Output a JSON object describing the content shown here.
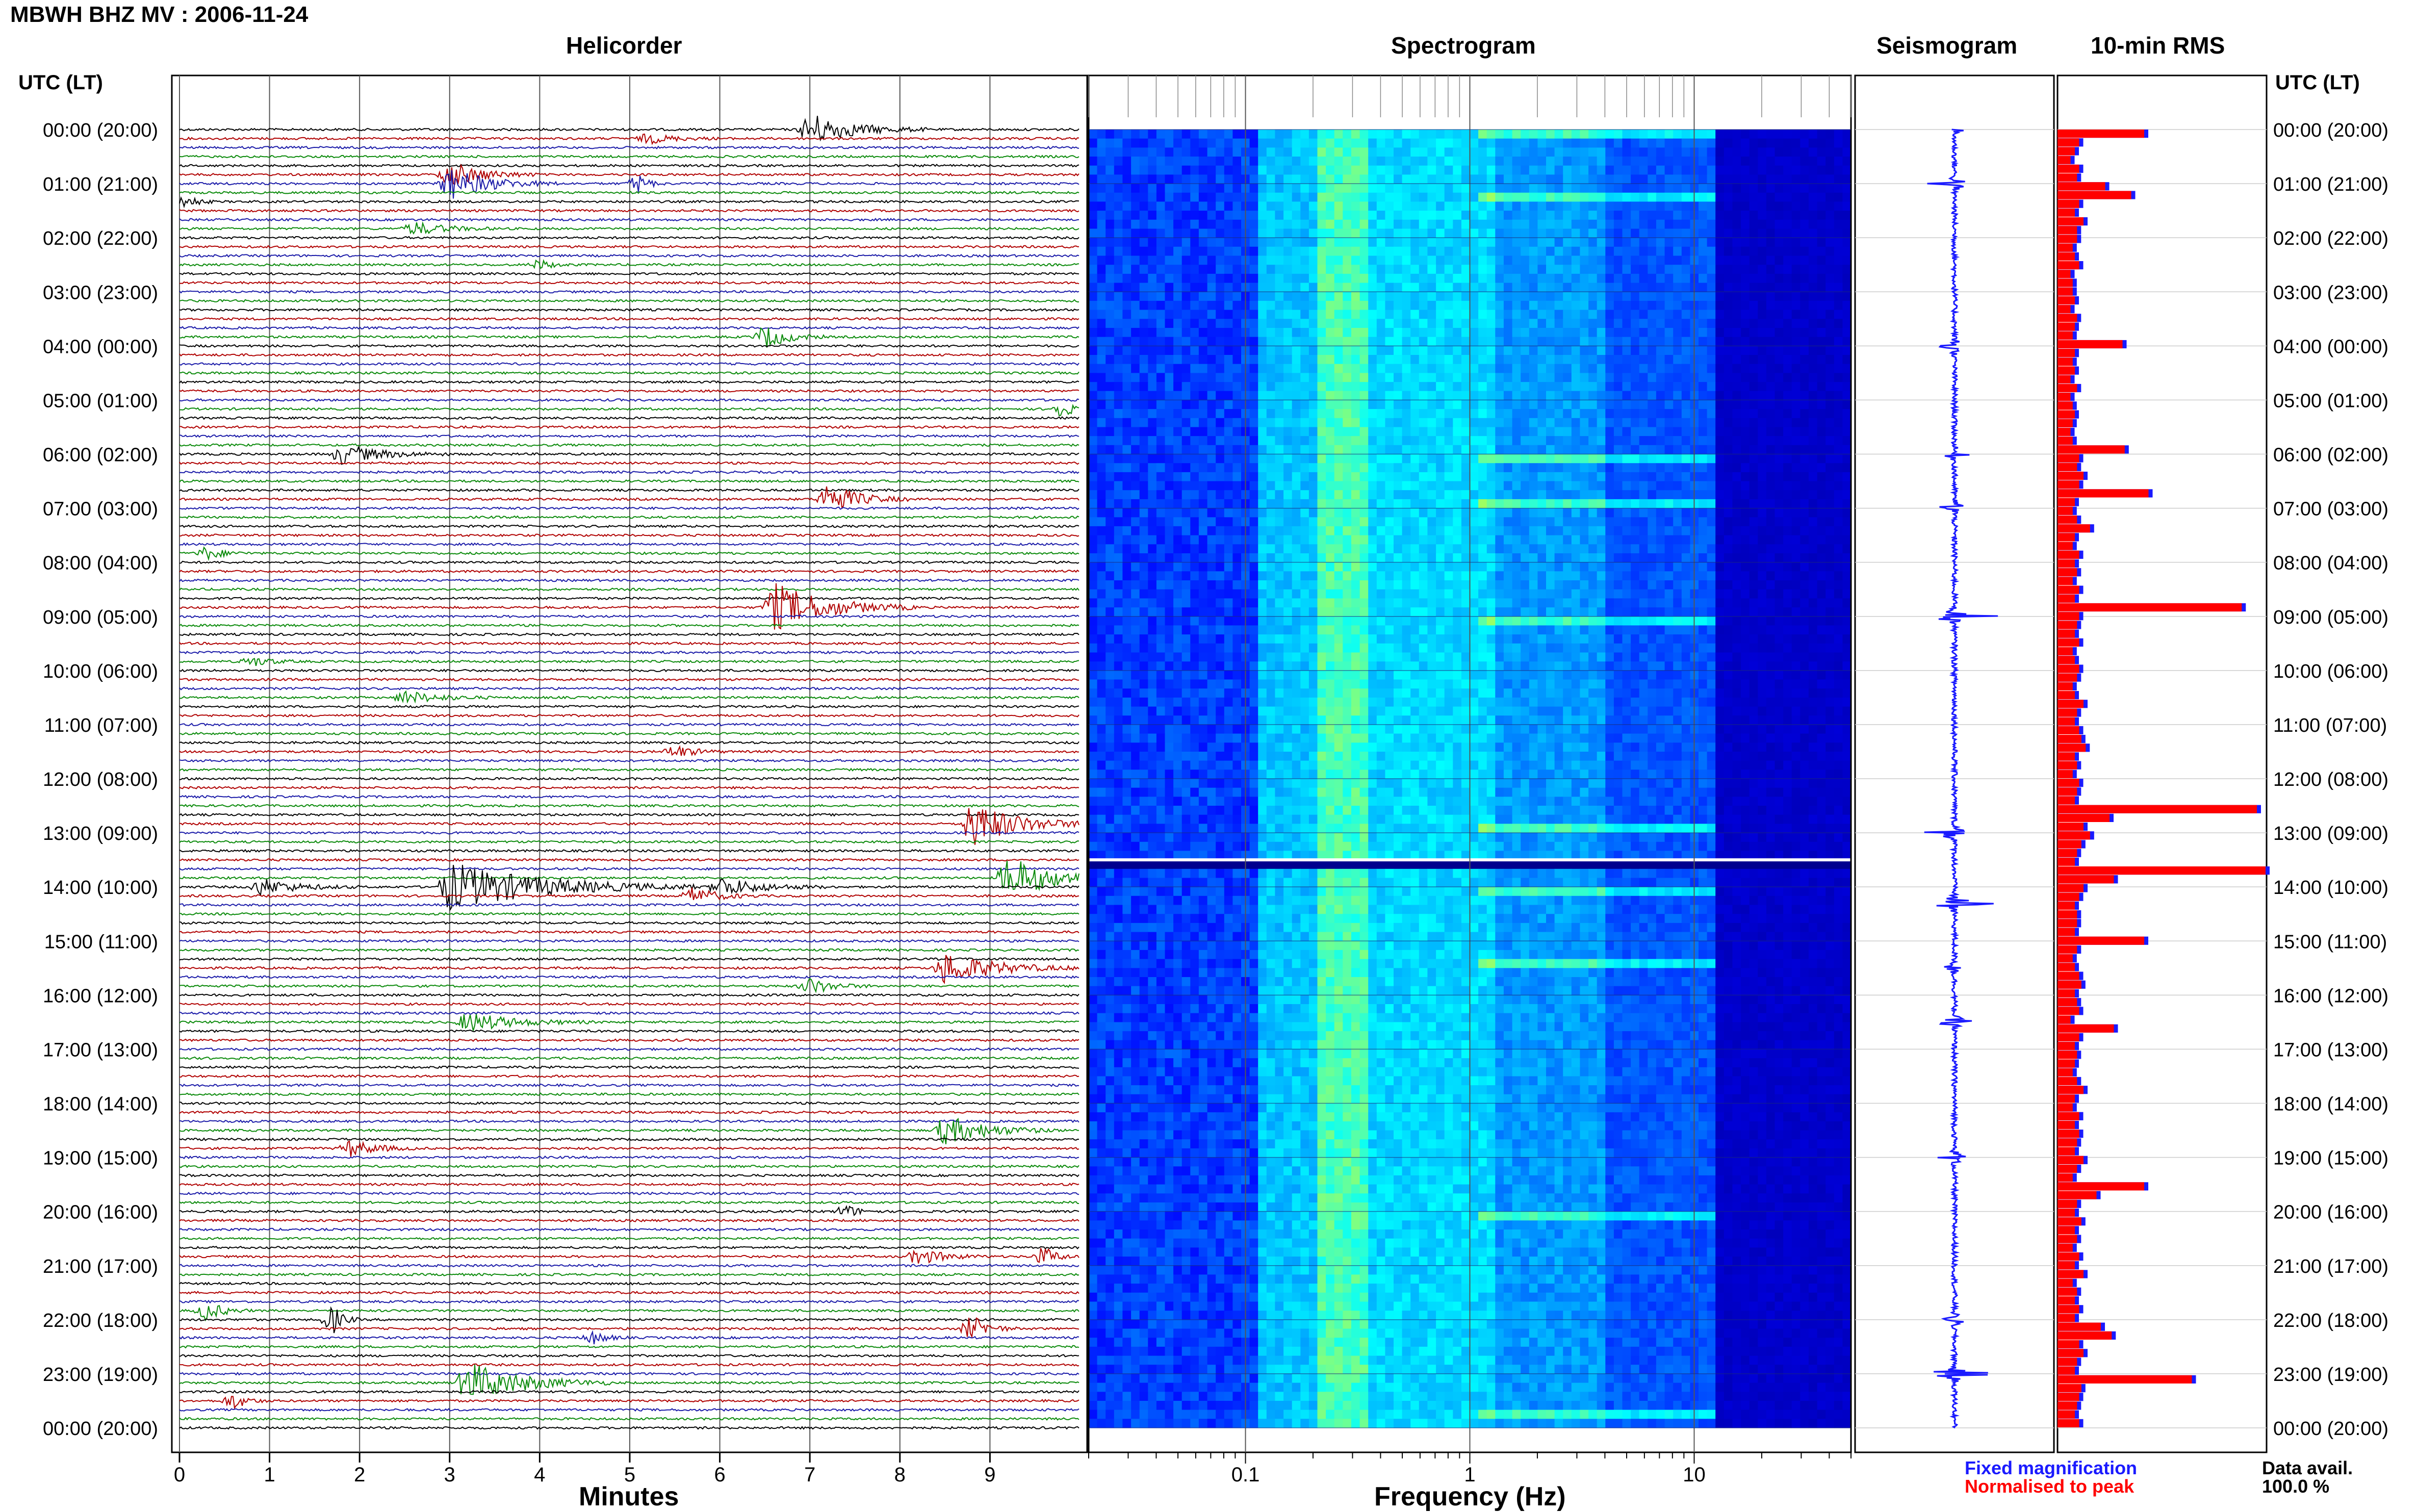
{
  "header": {
    "title": "MBWH BHZ MV : 2006-11-24",
    "helicorder_title": "Helicorder",
    "spectrogram_title": "Spectrogram",
    "seismogram_title": "Seismogram",
    "rms_title": "10-min RMS",
    "left_axis_title": "UTC (LT)",
    "right_axis_title": "UTC (LT)"
  },
  "chart_data": [
    {
      "type": "helicorder",
      "xlabel": "Minutes",
      "x_ticks": [
        "0",
        "1",
        "2",
        "3",
        "4",
        "5",
        "6",
        "7",
        "8",
        "9"
      ],
      "xlim": [
        0,
        10
      ],
      "row_labels": [
        "00:00 (20:00)",
        "01:00 (21:00)",
        "02:00 (22:00)",
        "03:00 (23:00)",
        "04:00 (00:00)",
        "05:00 (01:00)",
        "06:00 (02:00)",
        "07:00 (03:00)",
        "08:00 (04:00)",
        "09:00 (05:00)",
        "10:00 (06:00)",
        "11:00 (07:00)",
        "12:00 (08:00)",
        "13:00 (09:00)",
        "14:00 (10:00)",
        "15:00 (11:00)",
        "16:00 (12:00)",
        "17:00 (13:00)",
        "18:00 (14:00)",
        "19:00 (15:00)",
        "20:00 (16:00)",
        "21:00 (17:00)",
        "22:00 (18:00)",
        "23:00 (19:00)",
        "00:00 (20:00)"
      ],
      "trace_colors": [
        "#000000",
        "#b00000",
        "#1a1aa8",
        "#0a8a0a"
      ],
      "traces_per_hour": 6,
      "events": [
        {
          "hour": 0.0,
          "minute": 7.0,
          "amp": 1.0,
          "width": 1.3
        },
        {
          "hour": 0.17,
          "minute": 5.2,
          "amp": 0.3,
          "width": 0.8
        },
        {
          "hour": 0.83,
          "minute": 3.0,
          "amp": 0.8,
          "width": 1.0
        },
        {
          "hour": 1.0,
          "minute": 3.0,
          "amp": 1.0,
          "width": 1.2
        },
        {
          "hour": 1.0,
          "minute": 5.1,
          "amp": 0.6,
          "width": 0.3
        },
        {
          "hour": 1.33,
          "minute": 0.1,
          "amp": 0.4,
          "width": 0.3
        },
        {
          "hour": 1.83,
          "minute": 2.6,
          "amp": 0.4,
          "width": 1.0
        },
        {
          "hour": 2.5,
          "minute": 4.0,
          "amp": 0.3,
          "width": 0.4
        },
        {
          "hour": 3.83,
          "minute": 6.5,
          "amp": 0.7,
          "width": 0.7
        },
        {
          "hour": 5.17,
          "minute": 9.8,
          "amp": 0.6,
          "width": 0.3
        },
        {
          "hour": 6.0,
          "minute": 1.8,
          "amp": 0.6,
          "width": 1.2
        },
        {
          "hour": 6.83,
          "minute": 7.2,
          "amp": 1.0,
          "width": 0.9
        },
        {
          "hour": 7.83,
          "minute": 0.3,
          "amp": 0.4,
          "width": 0.5
        },
        {
          "hour": 8.83,
          "minute": 6.6,
          "amp": 1.5,
          "width": 1.6
        },
        {
          "hour": 9.83,
          "minute": 0.8,
          "amp": 0.3,
          "width": 0.6
        },
        {
          "hour": 10.5,
          "minute": 2.5,
          "amp": 0.4,
          "width": 1.0
        },
        {
          "hour": 11.5,
          "minute": 5.5,
          "amp": 0.4,
          "width": 0.6
        },
        {
          "hour": 12.83,
          "minute": 8.8,
          "amp": 1.4,
          "width": 1.4
        },
        {
          "hour": 13.83,
          "minute": 9.2,
          "amp": 1.3,
          "width": 1.5
        },
        {
          "hour": 14.0,
          "minute": 3.0,
          "amp": 1.5,
          "width": 2.8
        },
        {
          "hour": 14.0,
          "minute": 6.0,
          "amp": 0.6,
          "width": 1.2
        },
        {
          "hour": 14.0,
          "minute": 0.9,
          "amp": 0.5,
          "width": 1.1
        },
        {
          "hour": 14.17,
          "minute": 5.7,
          "amp": 0.5,
          "width": 0.8
        },
        {
          "hour": 15.5,
          "minute": 8.5,
          "amp": 1.0,
          "width": 1.5
        },
        {
          "hour": 15.83,
          "minute": 7.0,
          "amp": 0.5,
          "width": 0.7
        },
        {
          "hour": 16.5,
          "minute": 3.2,
          "amp": 0.6,
          "width": 1.4
        },
        {
          "hour": 18.5,
          "minute": 8.5,
          "amp": 0.9,
          "width": 1.3
        },
        {
          "hour": 18.83,
          "minute": 1.9,
          "amp": 0.5,
          "width": 0.8
        },
        {
          "hour": 20.0,
          "minute": 7.4,
          "amp": 0.4,
          "width": 0.4
        },
        {
          "hour": 20.83,
          "minute": 8.2,
          "amp": 0.5,
          "width": 0.8
        },
        {
          "hour": 20.83,
          "minute": 9.6,
          "amp": 0.6,
          "width": 0.4
        },
        {
          "hour": 21.83,
          "minute": 0.3,
          "amp": 0.6,
          "width": 0.5
        },
        {
          "hour": 22.0,
          "minute": 1.7,
          "amp": 0.9,
          "width": 0.3
        },
        {
          "hour": 22.17,
          "minute": 8.8,
          "amp": 0.8,
          "width": 0.5
        },
        {
          "hour": 22.33,
          "minute": 4.6,
          "amp": 0.4,
          "width": 0.4
        },
        {
          "hour": 23.17,
          "minute": 3.2,
          "amp": 1.3,
          "width": 1.6
        },
        {
          "hour": 23.5,
          "minute": 0.6,
          "amp": 0.5,
          "width": 0.4
        }
      ]
    },
    {
      "type": "heatmap",
      "xlabel": "Frequency (Hz)",
      "x_scale": "log",
      "xlim": [
        0.02,
        50
      ],
      "x_tick_labels": [
        "0.1",
        "1",
        "10"
      ],
      "x_tick_values": [
        0.1,
        1,
        10
      ],
      "colormap": [
        "#00008f",
        "#0000ff",
        "#0080ff",
        "#00ffff",
        "#80ff80",
        "#ffff00"
      ],
      "gap_hour": 13.5
    },
    {
      "type": "line",
      "title": "Seismogram",
      "spikes": [
        {
          "hour": 0.0,
          "amp": 0.15
        },
        {
          "hour": 1.0,
          "amp": 0.35
        },
        {
          "hour": 4.0,
          "amp": 0.35
        },
        {
          "hour": 6.0,
          "amp": 0.2
        },
        {
          "hour": 7.0,
          "amp": 0.3
        },
        {
          "hour": 9.0,
          "amp": 0.6
        },
        {
          "hour": 13.0,
          "amp": 0.55
        },
        {
          "hour": 14.3,
          "amp": 0.9
        },
        {
          "hour": 15.5,
          "amp": 0.2
        },
        {
          "hour": 16.5,
          "amp": 0.3
        },
        {
          "hour": 19.0,
          "amp": 0.25
        },
        {
          "hour": 22.0,
          "amp": 0.2
        },
        {
          "hour": 23.0,
          "amp": 0.55
        }
      ]
    },
    {
      "type": "bar",
      "orientation": "horizontal",
      "title": "10-min RMS",
      "series": [
        {
          "name": "Fixed magnification",
          "color": "#1a1aff"
        },
        {
          "name": "Normalised to peak",
          "color": "#ff0000"
        }
      ],
      "bins_per_hour": 6,
      "values": [
        0.4,
        0.1,
        0.08,
        0.06,
        0.1,
        0.09,
        0.22,
        0.34,
        0.1,
        0.08,
        0.12,
        0.09,
        0.09,
        0.07,
        0.08,
        0.1,
        0.06,
        0.07,
        0.07,
        0.08,
        0.06,
        0.09,
        0.08,
        0.07,
        0.3,
        0.08,
        0.07,
        0.08,
        0.06,
        0.09,
        0.06,
        0.07,
        0.08,
        0.07,
        0.06,
        0.07,
        0.31,
        0.1,
        0.09,
        0.12,
        0.1,
        0.42,
        0.08,
        0.07,
        0.09,
        0.15,
        0.08,
        0.07,
        0.1,
        0.08,
        0.09,
        0.07,
        0.1,
        0.08,
        0.85,
        0.1,
        0.09,
        0.08,
        0.1,
        0.07,
        0.08,
        0.1,
        0.09,
        0.07,
        0.08,
        0.12,
        0.09,
        0.08,
        0.1,
        0.11,
        0.13,
        0.08,
        0.09,
        0.07,
        0.1,
        0.09,
        0.08,
        0.92,
        0.24,
        0.12,
        0.15,
        0.11,
        0.09,
        0.08,
        0.96,
        0.26,
        0.12,
        0.1,
        0.08,
        0.09,
        0.09,
        0.08,
        0.4,
        0.09,
        0.07,
        0.08,
        0.1,
        0.11,
        0.08,
        0.09,
        0.1,
        0.06,
        0.26,
        0.1,
        0.08,
        0.09,
        0.08,
        0.07,
        0.09,
        0.12,
        0.08,
        0.07,
        0.1,
        0.08,
        0.1,
        0.09,
        0.08,
        0.12,
        0.09,
        0.07,
        0.4,
        0.18,
        0.09,
        0.08,
        0.11,
        0.08,
        0.09,
        0.07,
        0.1,
        0.08,
        0.12,
        0.07,
        0.09,
        0.08,
        0.1,
        0.08,
        0.2,
        0.25,
        0.1,
        0.12,
        0.09,
        0.08,
        0.62,
        0.11,
        0.1,
        0.09,
        0.08,
        0.1
      ]
    }
  ],
  "legend": {
    "fixed": "Fixed magnification",
    "normalised": "Normalised to peak",
    "avail_label": "Data avail.",
    "avail_value": "100.0 %"
  },
  "colors": {
    "fixed": "#1a1aff",
    "normalised": "#ff0000"
  }
}
